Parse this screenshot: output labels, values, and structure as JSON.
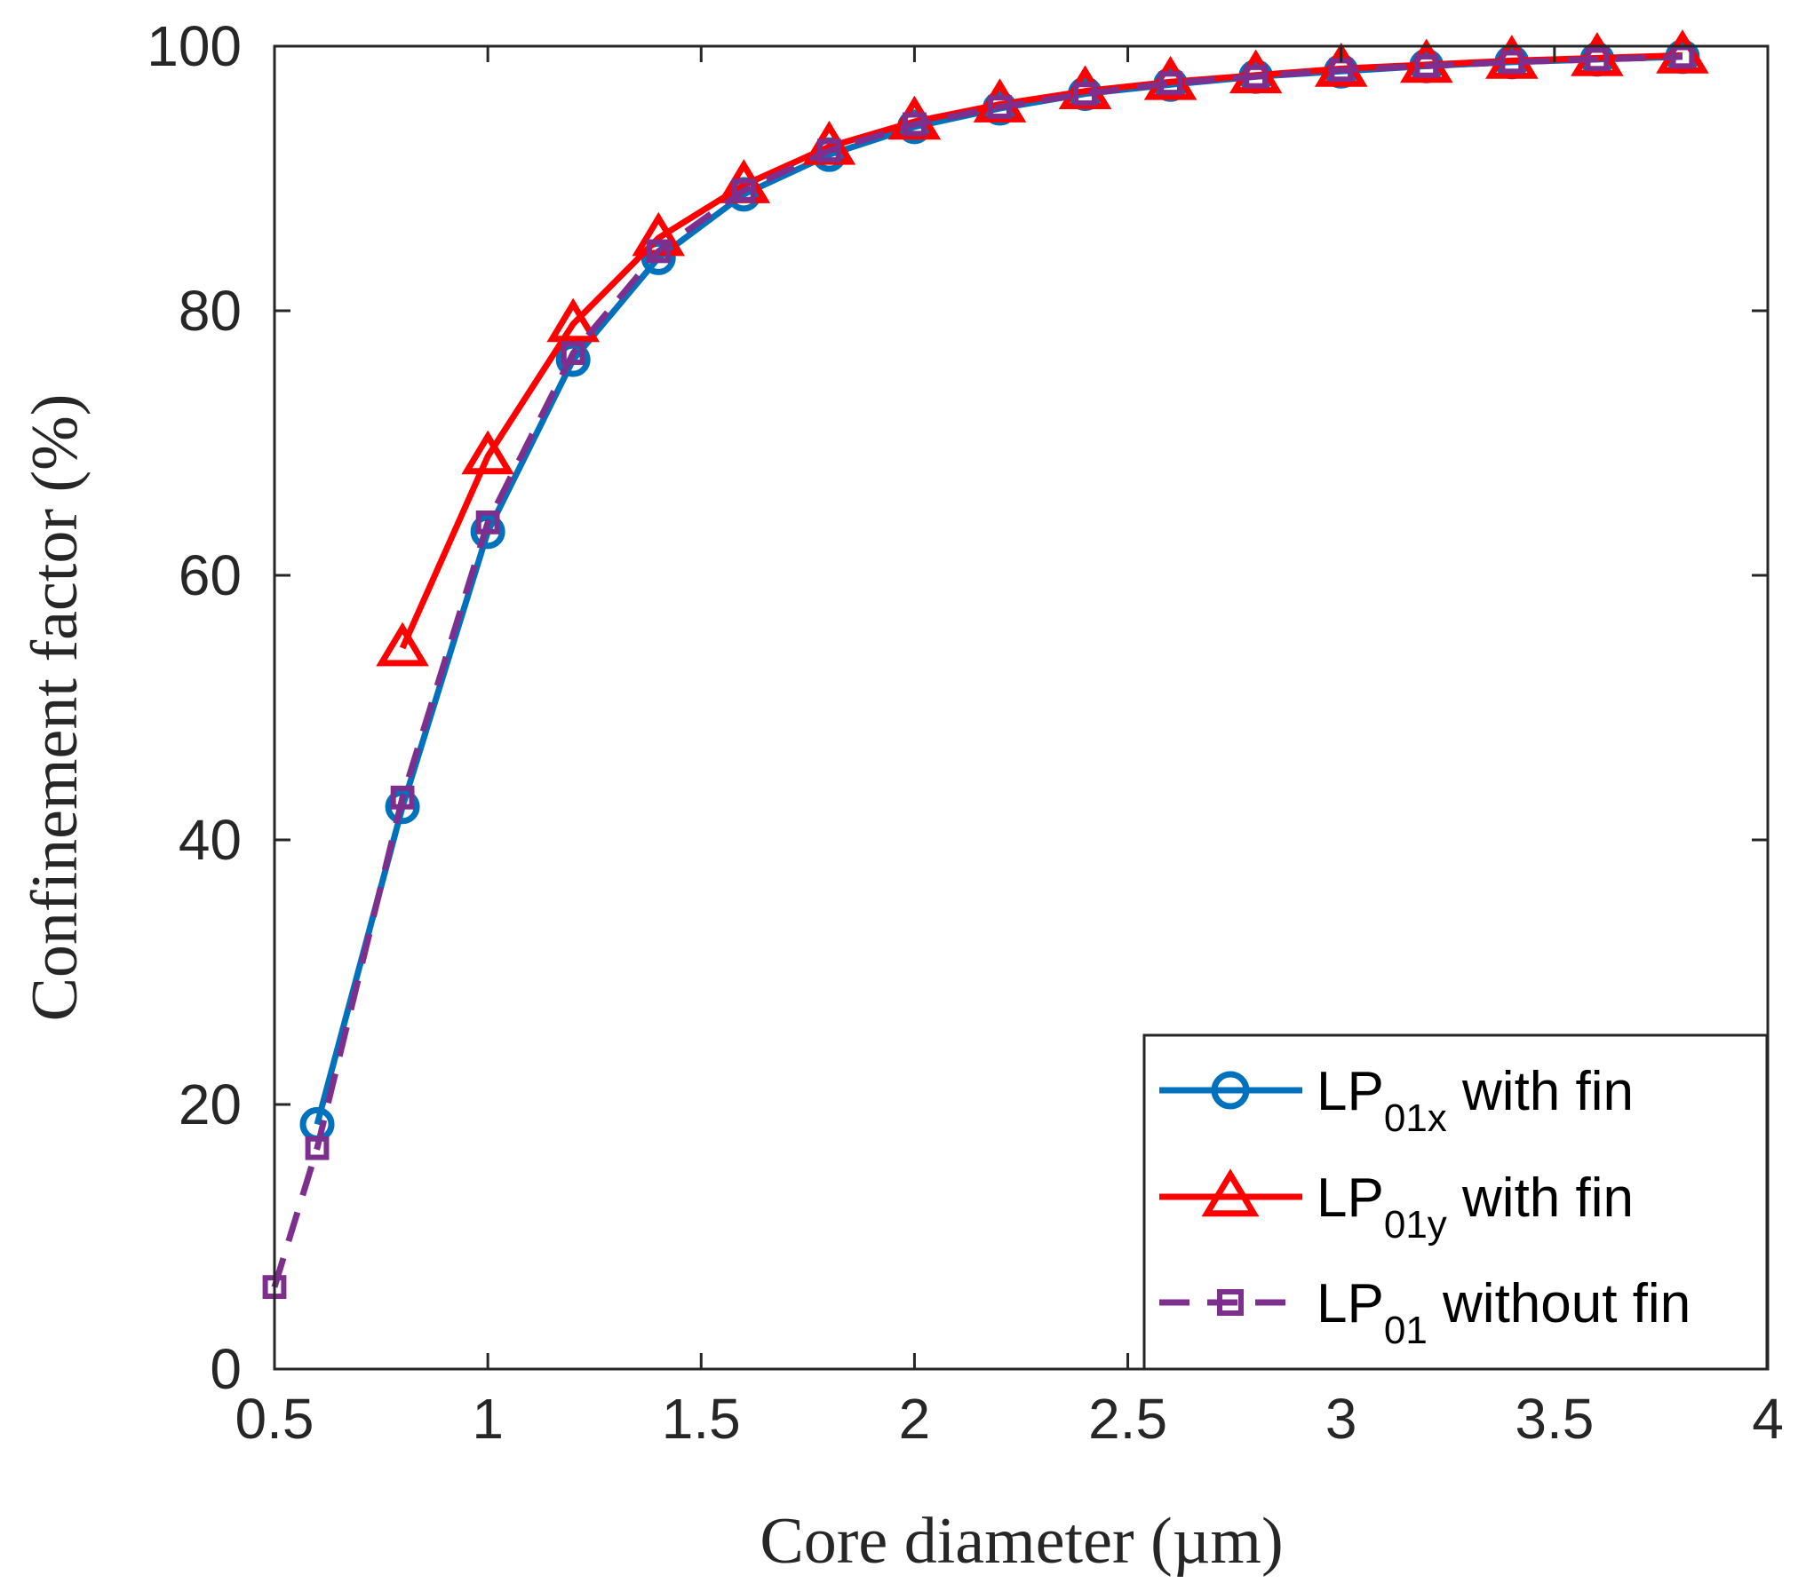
{
  "chart_data": {
    "type": "line",
    "xlabel": "Core diameter (µm)",
    "ylabel": "Confinement factor (%)",
    "xlim": [
      0.5,
      4
    ],
    "ylim": [
      0,
      100
    ],
    "xticks": [
      "0.5",
      "1",
      "1.5",
      "2",
      "2.5",
      "3",
      "3.5",
      "4"
    ],
    "yticks": [
      "0",
      "20",
      "40",
      "60",
      "80",
      "100"
    ],
    "legend_position": "bottom-right",
    "series": [
      {
        "name": "LP01x with fin",
        "legend_main": "LP",
        "legend_sub": "01x",
        "legend_suffix": " with fin",
        "color": "#0072BD",
        "marker": "circle",
        "dash": "solid",
        "x": [
          0.6,
          0.8,
          1.0,
          1.2,
          1.4,
          1.6,
          1.8,
          2.0,
          2.2,
          2.4,
          2.6,
          2.8,
          3.0,
          3.2,
          3.4,
          3.6,
          3.8
        ],
        "y": [
          18.5,
          42.5,
          63.3,
          76.3,
          84.0,
          88.8,
          91.8,
          93.9,
          95.3,
          96.4,
          97.1,
          97.7,
          98.1,
          98.5,
          98.8,
          99.0,
          99.2
        ]
      },
      {
        "name": "LP01y with fin",
        "legend_main": "LP",
        "legend_sub": "01y",
        "legend_suffix": " with fin",
        "color": "#FF0000",
        "marker": "triangle",
        "dash": "solid",
        "x": [
          0.8,
          1.0,
          1.2,
          1.4,
          1.6,
          1.8,
          2.0,
          2.2,
          2.4,
          2.6,
          2.8,
          3.0,
          3.2,
          3.4,
          3.6,
          3.8
        ],
        "y": [
          54.5,
          69.0,
          79.0,
          85.5,
          89.5,
          92.4,
          94.3,
          95.6,
          96.6,
          97.3,
          97.8,
          98.3,
          98.6,
          98.9,
          99.1,
          99.3
        ]
      },
      {
        "name": "LP01 without fin",
        "legend_main": "LP",
        "legend_sub": "01",
        "legend_suffix": " without fin",
        "color": "#7E2F8E",
        "marker": "square",
        "dash": "dashed",
        "x": [
          0.5,
          0.6,
          0.8,
          1.0,
          1.2,
          1.4,
          1.6,
          1.8,
          2.0,
          2.2,
          2.4,
          2.6,
          2.8,
          3.0,
          3.2,
          3.4,
          3.6,
          3.8
        ],
        "y": [
          6.2,
          16.7,
          43.2,
          64.0,
          76.8,
          84.5,
          89.1,
          92.1,
          94.1,
          95.4,
          96.4,
          97.2,
          97.7,
          98.2,
          98.5,
          98.8,
          99.0,
          99.2
        ]
      }
    ]
  }
}
